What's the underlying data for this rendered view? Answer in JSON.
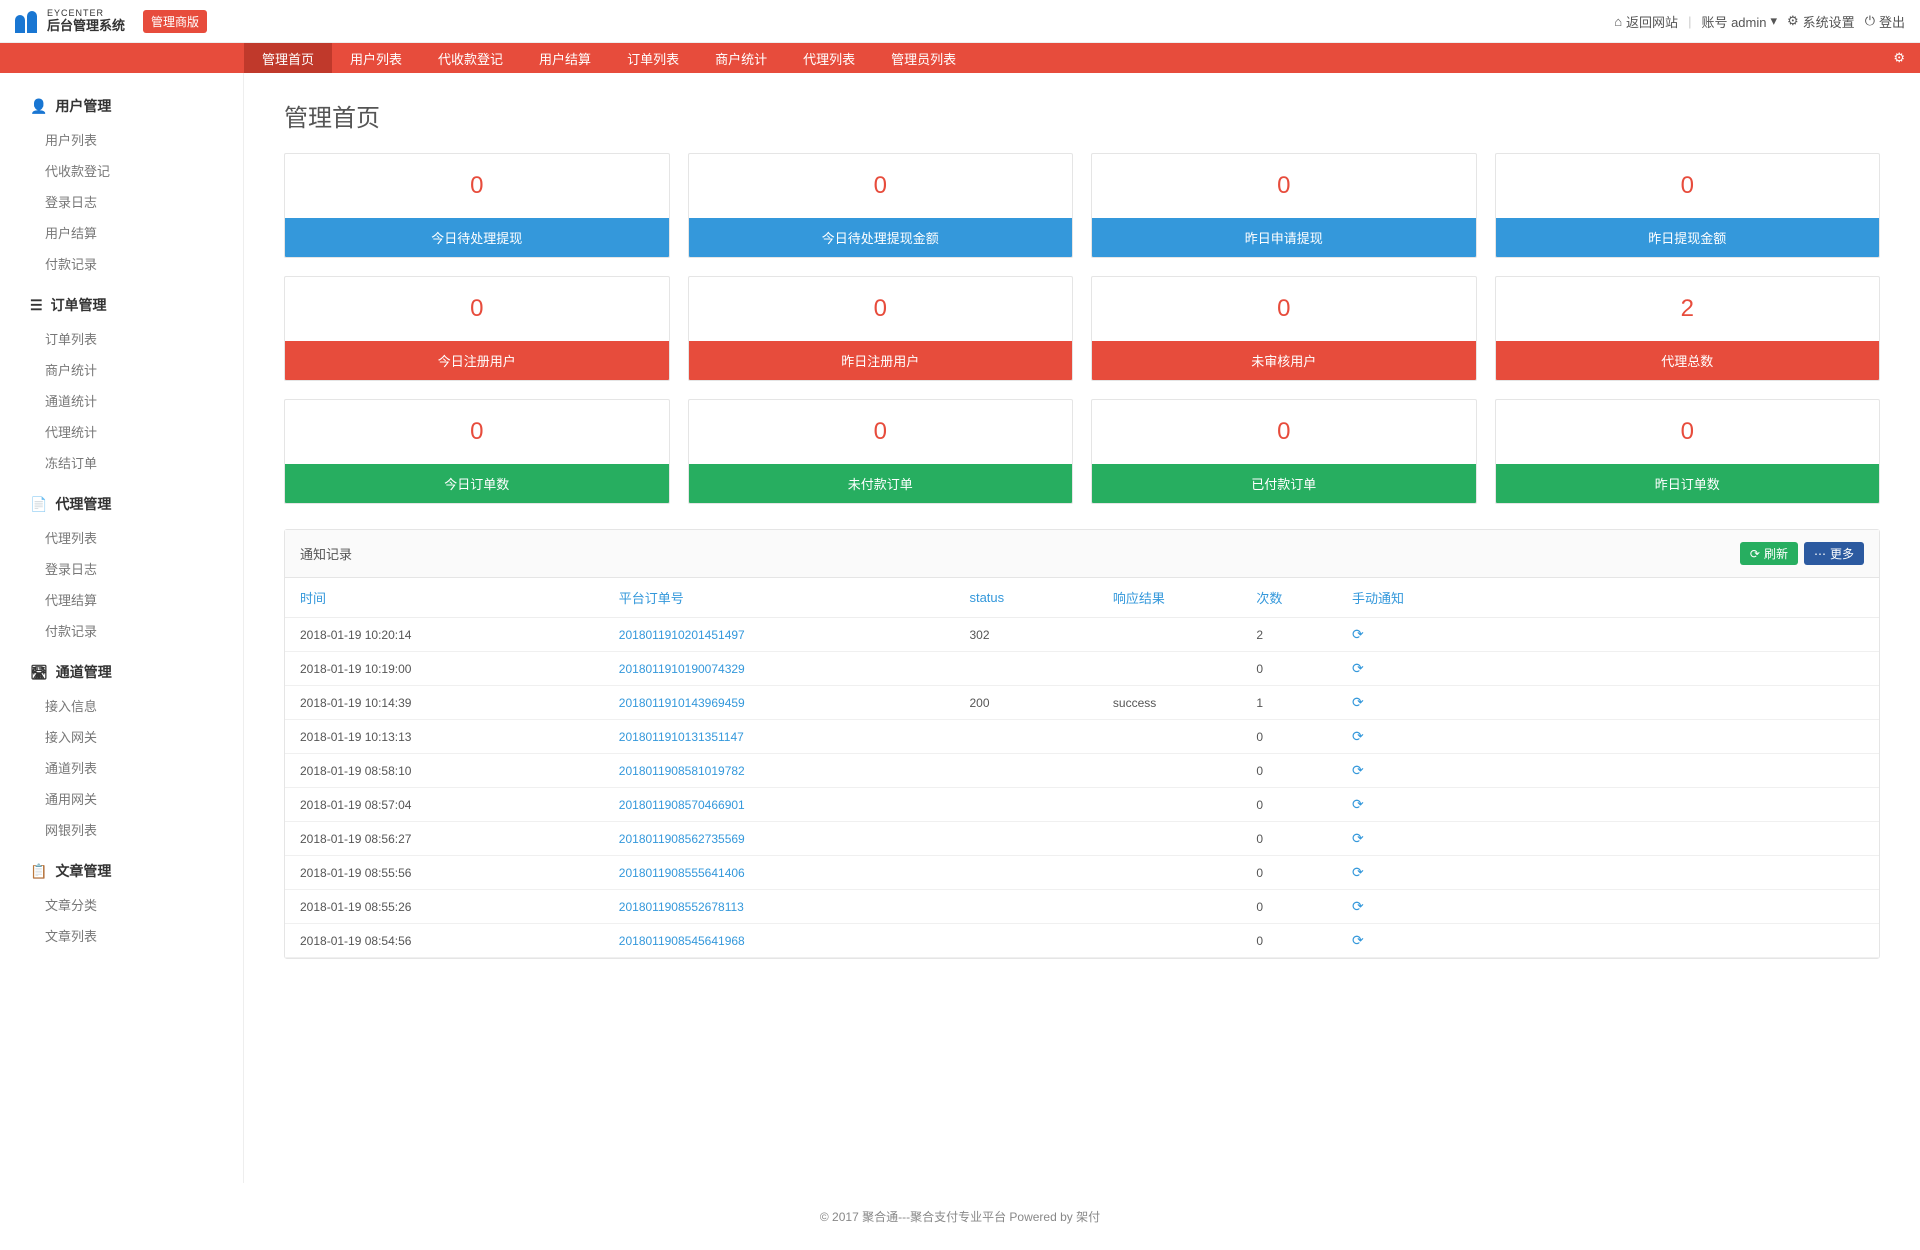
{
  "header": {
    "logo_en": "EYCENTER",
    "logo_cn": "后台管理系统",
    "badge": "管理商版",
    "back_site": "返回网站",
    "account_label": "账号 admin",
    "settings": "系统设置",
    "logout": "登出"
  },
  "nav": {
    "items": [
      "管理首页",
      "用户列表",
      "代收款登记",
      "用户结算",
      "订单列表",
      "商户统计",
      "代理列表",
      "管理员列表"
    ],
    "active_index": 0
  },
  "sidebar": {
    "sections": [
      {
        "icon": "👤",
        "title": "用户管理",
        "links": [
          "用户列表",
          "代收款登记",
          "登录日志",
          "用户结算",
          "付款记录"
        ]
      },
      {
        "icon": "☰",
        "title": "订单管理",
        "links": [
          "订单列表",
          "商户统计",
          "通道统计",
          "代理统计",
          "冻结订单"
        ]
      },
      {
        "icon": "📄",
        "title": "代理管理",
        "links": [
          "代理列表",
          "登录日志",
          "代理结算",
          "付款记录"
        ]
      },
      {
        "icon": "🛣",
        "title": "通道管理",
        "links": [
          "接入信息",
          "接入网关",
          "通道列表",
          "通用网关",
          "网银列表"
        ]
      },
      {
        "icon": "📋",
        "title": "文章管理",
        "links": [
          "文章分类",
          "文章列表"
        ]
      }
    ]
  },
  "page": {
    "title": "管理首页"
  },
  "stats": {
    "rows": [
      {
        "color": "blue",
        "cards": [
          {
            "value": "0",
            "label": "今日待处理提现"
          },
          {
            "value": "0",
            "label": "今日待处理提现金额"
          },
          {
            "value": "0",
            "label": "昨日申请提现"
          },
          {
            "value": "0",
            "label": "昨日提现金额"
          }
        ]
      },
      {
        "color": "red",
        "cards": [
          {
            "value": "0",
            "label": "今日注册用户"
          },
          {
            "value": "0",
            "label": "昨日注册用户"
          },
          {
            "value": "0",
            "label": "未审核用户"
          },
          {
            "value": "2",
            "label": "代理总数"
          }
        ]
      },
      {
        "color": "green",
        "cards": [
          {
            "value": "0",
            "label": "今日订单数"
          },
          {
            "value": "0",
            "label": "未付款订单"
          },
          {
            "value": "0",
            "label": "已付款订单"
          },
          {
            "value": "0",
            "label": "昨日订单数"
          }
        ]
      }
    ]
  },
  "panel": {
    "title": "通知记录",
    "refresh_btn": "刷新",
    "more_btn": "更多",
    "columns": [
      "时间",
      "平台订单号",
      "status",
      "响应结果",
      "次数",
      "手动通知"
    ],
    "rows": [
      {
        "time": "2018-01-19 10:20:14",
        "order": "2018011910201451497",
        "status": "302",
        "resp": "",
        "count": "2"
      },
      {
        "time": "2018-01-19 10:19:00",
        "order": "2018011910190074329",
        "status": "",
        "resp": "",
        "count": "0"
      },
      {
        "time": "2018-01-19 10:14:39",
        "order": "2018011910143969459",
        "status": "200",
        "resp": "success",
        "count": "1"
      },
      {
        "time": "2018-01-19 10:13:13",
        "order": "2018011910131351147",
        "status": "",
        "resp": "",
        "count": "0"
      },
      {
        "time": "2018-01-19 08:58:10",
        "order": "2018011908581019782",
        "status": "",
        "resp": "",
        "count": "0"
      },
      {
        "time": "2018-01-19 08:57:04",
        "order": "2018011908570466901",
        "status": "",
        "resp": "",
        "count": "0"
      },
      {
        "time": "2018-01-19 08:56:27",
        "order": "2018011908562735569",
        "status": "",
        "resp": "",
        "count": "0"
      },
      {
        "time": "2018-01-19 08:55:56",
        "order": "2018011908555641406",
        "status": "",
        "resp": "",
        "count": "0"
      },
      {
        "time": "2018-01-19 08:55:26",
        "order": "2018011908552678113",
        "status": "",
        "resp": "",
        "count": "0"
      },
      {
        "time": "2018-01-19 08:54:56",
        "order": "2018011908545641968",
        "status": "",
        "resp": "",
        "count": "0"
      }
    ]
  },
  "footer": {
    "text": "© 2017 聚合通---聚合支付专业平台 Powered by 架付"
  },
  "colors": {
    "brand_red": "#e74c3c",
    "brand_red_dark": "#c0392b",
    "blue": "#3498db",
    "green": "#27ae60",
    "dark_blue": "#2c5aa0"
  }
}
